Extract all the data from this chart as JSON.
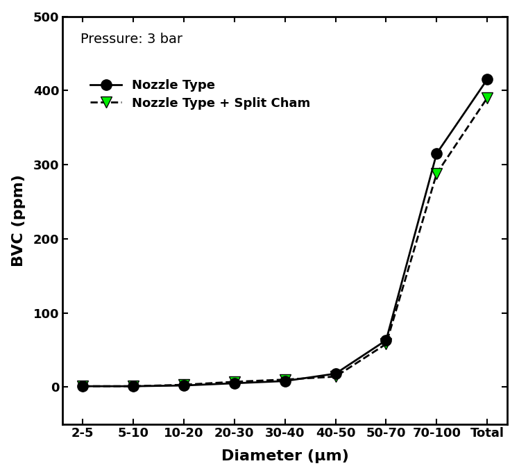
{
  "categories": [
    "2-5",
    "5-10",
    "10-20",
    "20-30",
    "30-40",
    "40-50",
    "50-70",
    "70-100",
    "Total"
  ],
  "series1_label": "Nozzle Type",
  "series1_values": [
    1,
    1,
    2,
    5,
    8,
    18,
    63,
    315,
    415
  ],
  "series1_color": "#000000",
  "series1_linestyle": "-",
  "series1_marker": "o",
  "series1_markerface": "#000000",
  "series1_markeredge": "#000000",
  "series2_label": "Nozzle Type + Split Cham",
  "series2_values": [
    1,
    1,
    3,
    7,
    10,
    14,
    58,
    288,
    390
  ],
  "series2_color": "#000000",
  "series2_linestyle": "--",
  "series2_marker": "v",
  "series2_markerface": "#00ee00",
  "series2_markeredge": "#000000",
  "xlabel": "Diameter (μm)",
  "ylabel": "BVC (ppm)",
  "annotation": "Pressure: 3 bar",
  "ylim": [
    -50,
    500
  ],
  "yticks": [
    0,
    100,
    200,
    300,
    400,
    500
  ],
  "label_fontsize": 16,
  "tick_fontsize": 13,
  "legend_fontsize": 13,
  "annotation_fontsize": 14,
  "marker_size": 11,
  "linewidth": 2.0,
  "background_color": "#ffffff"
}
